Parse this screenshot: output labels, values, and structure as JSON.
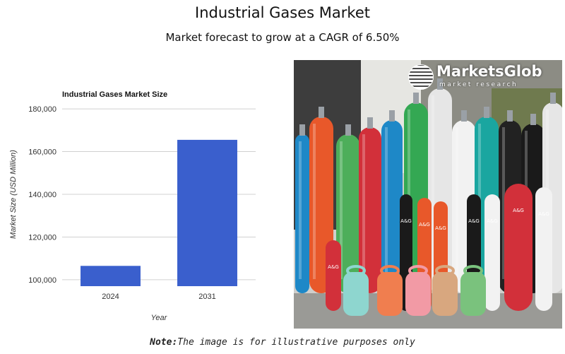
{
  "header": {
    "title": "Industrial Gases Market",
    "subtitle": "Market forecast to grow at a CAGR of 6.50%"
  },
  "chart_data": {
    "type": "bar",
    "title": "Industrial Gases Market Size",
    "categories": [
      "2024",
      "2031"
    ],
    "values": [
      106500,
      165500
    ],
    "xlabel": "Year",
    "ylabel": "Market Size (USD Million)",
    "ylim": [
      97000,
      183000
    ],
    "yticks": [
      "100,000",
      "120,000",
      "140,000",
      "160,000",
      "180,000"
    ],
    "ytick_values": [
      100000,
      120000,
      140000,
      160000,
      180000
    ],
    "bar_color": "#3a5fcd",
    "grid": true
  },
  "image": {
    "logo_name": "MarketsGlob",
    "logo_tagline": "market research",
    "cylinder_label": "A&G"
  },
  "footer": {
    "note_bold": "Note:",
    "note_text": "The image is for illustrative purposes only"
  }
}
